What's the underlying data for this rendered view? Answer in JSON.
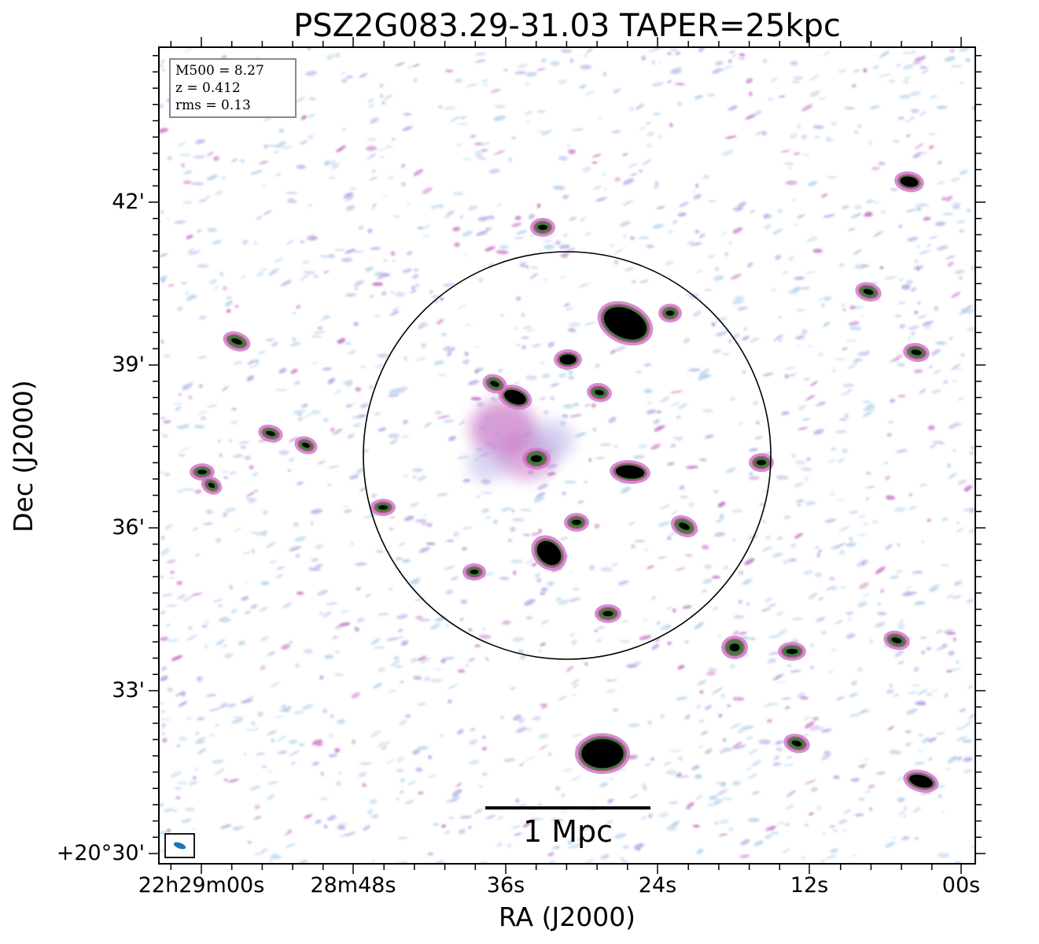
{
  "title": "PSZ2G083.29-31.03 TAPER=25kpc",
  "axes": {
    "xlabel": "RA (J2000)",
    "ylabel": "Dec (J2000)",
    "xticks": [
      "22h29m00s",
      "28m48s",
      "36s",
      "24s",
      "12s",
      "00s"
    ],
    "yticks": [
      "+20°30'",
      "33'",
      "36'",
      "39'",
      "42'"
    ]
  },
  "info": {
    "m500": "M500 = 8.27",
    "z": "z = 0.412",
    "rms": "rms = 0.13"
  },
  "scalebar": {
    "label": "1 Mpc"
  },
  "colors": {
    "noise_light": "#bcd6ec",
    "noise_mid": "#b7b0e6",
    "emission_pink": "#c97cc8",
    "emission_magenta": "#b8508a",
    "source_core": "#000000",
    "source_rim": "#3f7a3a",
    "beam": "#1f77b4"
  },
  "elements": {
    "r500_circle": "black circle outline",
    "beam_icon": "ellipse in box"
  }
}
